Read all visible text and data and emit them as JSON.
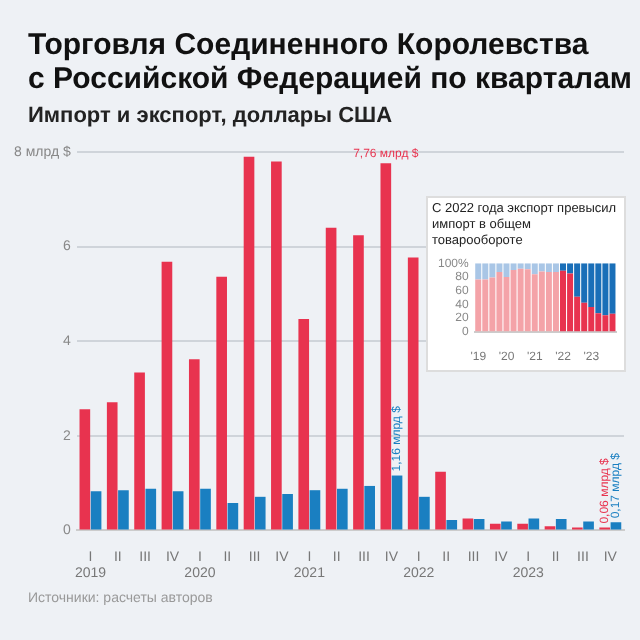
{
  "chart_data": [
    {
      "type": "bar",
      "title": "Торговля Соединенного Королевства\nс Российской Федерацией по кварталам",
      "subtitle": "Импорт и экспорт, доллары США",
      "categories": [
        "I\n2019",
        "II",
        "III",
        "IV",
        "I\n2020",
        "II",
        "III",
        "IV",
        "I\n2021",
        "II",
        "III",
        "IV",
        "I\n2022",
        "II",
        "III",
        "IV",
        "I\n2023",
        "II",
        "III",
        "IV"
      ],
      "series": [
        {
          "color": "#e8334f",
          "values": [
            2.56,
            2.71,
            3.34,
            5.68,
            3.62,
            5.36,
            7.9,
            7.8,
            4.47,
            6.4,
            6.24,
            7.76,
            5.77,
            1.24,
            0.25,
            0.14,
            0.14,
            0.09,
            0.06,
            0.06
          ],
          "value_labels": [
            null,
            null,
            null,
            null,
            null,
            null,
            null,
            null,
            null,
            null,
            null,
            "7,76 млрд $",
            null,
            null,
            null,
            null,
            null,
            null,
            null,
            "0,06 млрд $"
          ]
        },
        {
          "color": "#1a7fc1",
          "values": [
            0.83,
            0.85,
            0.88,
            0.83,
            0.88,
            0.58,
            0.71,
            0.77,
            0.85,
            0.88,
            0.94,
            1.16,
            0.71,
            0.22,
            0.24,
            0.19,
            0.25,
            0.24,
            0.19,
            0.17
          ],
          "value_labels": [
            null,
            null,
            null,
            null,
            null,
            null,
            null,
            null,
            null,
            null,
            null,
            "1,16 млрд $",
            null,
            null,
            null,
            null,
            null,
            null,
            null,
            "0,17 млрд $"
          ]
        }
      ],
      "ylim": [
        0,
        8
      ],
      "yticks": [
        0,
        2,
        4,
        6,
        {
          "value": 8,
          "label": "8 млрд $"
        }
      ],
      "grid": "y",
      "annotations": [
        "Источники: расчеты авторов"
      ]
    },
    {
      "type": "bar",
      "title": "С 2022 года экспорт превысил импорт в общем товарообороте",
      "stacked": true,
      "categories": [
        "'19",
        null,
        null,
        null,
        "'20",
        null,
        null,
        null,
        "'21",
        null,
        null,
        null,
        "'22",
        null,
        null,
        null,
        "'23",
        null,
        null,
        null
      ],
      "series": [
        {
          "colors": [
            "#f4a3a8",
            "#f4a3a8",
            "#f4a3a8",
            "#f4a3a8",
            "#f4a3a8",
            "#f4a3a8",
            "#f4a3a8",
            "#f4a3a8",
            "#f4a3a8",
            "#f4a3a8",
            "#f4a3a8",
            "#f4a3a8",
            "#e8334f",
            "#e8334f",
            "#e8334f",
            "#e8334f",
            "#e8334f",
            "#e8334f",
            "#e8334f",
            "#e8334f"
          ],
          "values": [
            76,
            76,
            79,
            87,
            80,
            90,
            92,
            91,
            84,
            88,
            87,
            87,
            89,
            85,
            51,
            42,
            36,
            27,
            24,
            26
          ]
        },
        {
          "colors": [
            "#a9c6e6",
            "#a9c6e6",
            "#a9c6e6",
            "#a9c6e6",
            "#a9c6e6",
            "#a9c6e6",
            "#a9c6e6",
            "#a9c6e6",
            "#a9c6e6",
            "#a9c6e6",
            "#a9c6e6",
            "#a9c6e6",
            "#1a6fb8",
            "#1a6fb8",
            "#1a6fb8",
            "#1a6fb8",
            "#1a6fb8",
            "#1a6fb8",
            "#1a6fb8",
            "#1a6fb8"
          ],
          "values": [
            24,
            24,
            21,
            13,
            20,
            10,
            8,
            9,
            16,
            12,
            13,
            13,
            11,
            15,
            49,
            58,
            64,
            73,
            76,
            74
          ]
        }
      ],
      "ylim": [
        0,
        100
      ],
      "yticks": [
        0,
        20,
        40,
        60,
        80,
        {
          "value": 100,
          "label": "100%"
        }
      ]
    }
  ]
}
